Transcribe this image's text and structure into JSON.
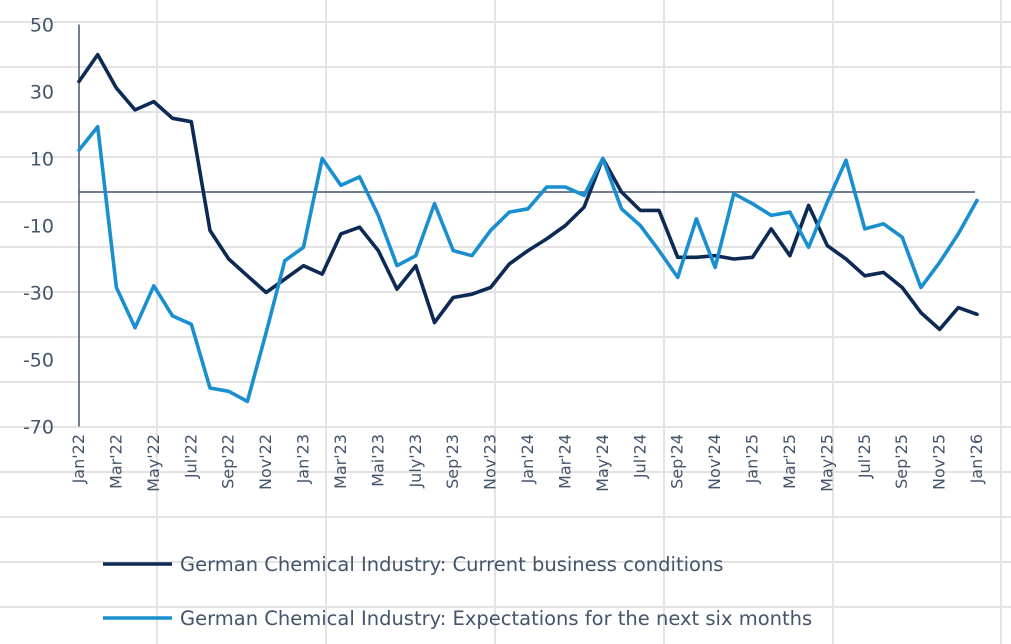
{
  "chart_data": {
    "type": "line",
    "title": "",
    "xlabel": "",
    "ylabel": "",
    "ylim": [
      -70,
      50
    ],
    "yticks": [
      50,
      30,
      10,
      -10,
      -30,
      -50,
      -70
    ],
    "reference_line": 0,
    "grid": false,
    "legend_position": "bottom",
    "x": [
      "Jan'22",
      "Feb'22",
      "Mar'22",
      "Apr'22",
      "May'22",
      "Jun'22",
      "Jul'22",
      "Aug'22",
      "Sep'22",
      "Oct'22",
      "Nov'22",
      "Dec'22",
      "Jan'23",
      "Feb'23",
      "Mar'23",
      "Apr'23",
      "Mai'23",
      "Jun'23",
      "July'23",
      "Aug'23",
      "Sep'23",
      "Oct'23",
      "Nov'23",
      "Dec'23",
      "Jan'24",
      "Feb'24",
      "Mar'24",
      "Apr'24",
      "May'24",
      "Jun'24",
      "Jul'24",
      "Aug'24",
      "Sep'24",
      "Oct'24",
      "Nov'24",
      "Dec'24",
      "Jan'25",
      "Feb'25",
      "Mar'25",
      "Apr'25",
      "May'25",
      "Jun'25",
      "Jul'25",
      "Aug'25",
      "Sep'25",
      "Oct'25",
      "Nov'25",
      "Dec'25",
      "Jan'26"
    ],
    "xtick_labels": [
      "Jan'22",
      "Mar'22",
      "May'22",
      "Jul'22",
      "Sep'22",
      "Nov'22",
      "Jan'23",
      "Mar'23",
      "Mai'23",
      "July'23",
      "Sep'23",
      "Nov'23",
      "Jan'24",
      "Mar'24",
      "May'24",
      "Jul'24",
      "Sep'24",
      "Nov'24",
      "Jan'25",
      "Mar'25",
      "May'25",
      "Jul'25",
      "Sep'25",
      "Nov'25",
      "Jan'26"
    ],
    "series": [
      {
        "name": "German Chemical Industry: Current business conditions",
        "color": "#0d2a55",
        "values": [
          33,
          41,
          31,
          24.5,
          27,
          22,
          21,
          -11.5,
          -20,
          -25,
          -30,
          -26,
          -22,
          -24.5,
          -12.5,
          -10.5,
          -17.5,
          -29,
          -22,
          -39,
          -31.5,
          -30.5,
          -28.5,
          -21.5,
          -17.5,
          -14,
          -10,
          -4.5,
          10,
          0,
          -5.5,
          -5.5,
          -19.5,
          -19.5,
          -19,
          -20,
          -19.5,
          -11,
          -19,
          -4,
          -16,
          -20,
          -25,
          -24,
          -28.5,
          -36,
          -41,
          -34.5,
          -36.5
        ]
      },
      {
        "name": "German Chemical Industry: Expectations for the next six months",
        "color": "#1a8fcf",
        "values": [
          12.5,
          19.5,
          -28.5,
          -40.5,
          -28,
          -37,
          -39.5,
          -58.5,
          -59.5,
          -62.5,
          -42,
          -20.5,
          -16.5,
          10,
          2,
          4.5,
          -7,
          -22,
          -19,
          -3.5,
          -17.5,
          -19,
          -11.5,
          -6,
          -5,
          1.5,
          1.5,
          -1,
          10,
          -5,
          -10,
          -17.5,
          -25.5,
          -8,
          -22.5,
          -0.5,
          -3.5,
          -7,
          -6,
          -16.5,
          -3,
          9.5,
          -11,
          -9.5,
          -13.5,
          -28.5,
          -21,
          -12.5,
          -2.5
        ]
      }
    ]
  },
  "colors": {
    "axis": "#44546a",
    "zero_line": "#44546a",
    "sheet_grid": "#e3e3e3",
    "text": "#44546a"
  }
}
